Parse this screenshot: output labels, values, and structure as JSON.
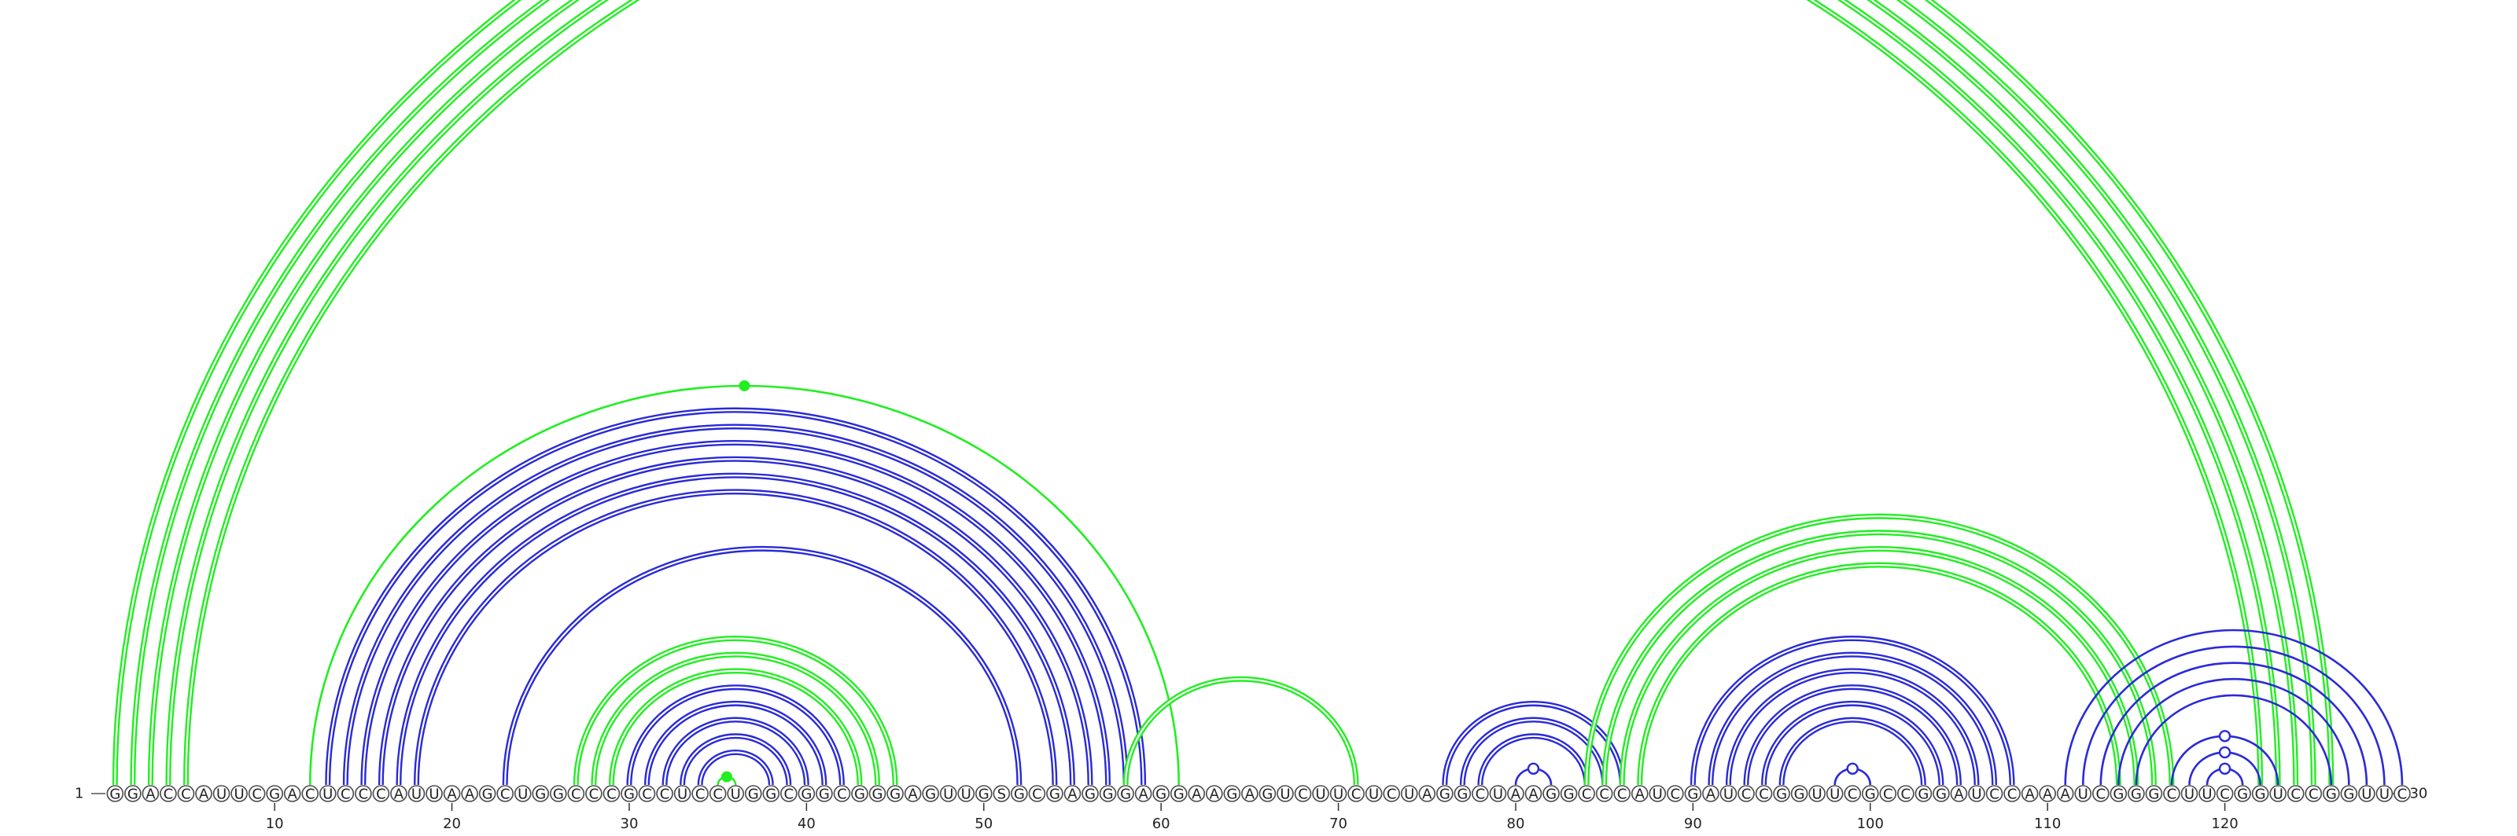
{
  "sequence": "GGACCAUUCGACUCCCAUUAAGCUGGCCCGCCUCCUGGCGGCGGGAGUUGSGCGAGGGAGGAAGAGUCUUCUCUAGGCUAAGGCCCAUCGAUCCGGUUCGCCGGAUCCAAAUCGGGCUUCGGUCCGGUUC",
  "start_label": "1",
  "end_label": "130",
  "position_ticks": [
    10,
    20,
    30,
    40,
    50,
    60,
    70,
    80,
    90,
    100,
    110,
    120
  ],
  "colors": {
    "green": "#22ee22",
    "blue": "#2a2ad8"
  },
  "helices": [
    {
      "i": 1,
      "j": 126,
      "len": 5,
      "color": "green",
      "double": true
    },
    {
      "i": 12,
      "j": 61,
      "len": 1,
      "color": "green",
      "double": false,
      "dot": "filled"
    },
    {
      "i": 13,
      "j": 59,
      "len": 6,
      "color": "blue",
      "double": true
    },
    {
      "i": 23,
      "j": 52,
      "len": 1,
      "color": "blue",
      "double": true
    },
    {
      "i": 27,
      "j": 45,
      "len": 3,
      "color": "green",
      "double": true
    },
    {
      "i": 30,
      "j": 42,
      "len": 5,
      "color": "blue",
      "double": true
    },
    {
      "i": 35,
      "j": 36,
      "len": 1,
      "color": "green",
      "double": false,
      "dot": "filled"
    },
    {
      "i": 58,
      "j": 71,
      "len": 1,
      "color": "green",
      "double": true
    },
    {
      "i": 76,
      "j": 86,
      "len": 3,
      "color": "blue",
      "double": true
    },
    {
      "i": 80,
      "j": 82,
      "len": 1,
      "color": "blue",
      "double": false,
      "dot": "open"
    },
    {
      "i": 84,
      "j": 117,
      "len": 4,
      "color": "green",
      "double": true
    },
    {
      "i": 90,
      "j": 108,
      "len": 6,
      "color": "blue",
      "double": true
    },
    {
      "i": 98,
      "j": 100,
      "len": 1,
      "color": "blue",
      "double": false,
      "dot": "open"
    },
    {
      "i": 111,
      "j": 130,
      "len": 5,
      "color": "blue",
      "double": false
    },
    {
      "i": 119,
      "j": 121,
      "len": 1,
      "color": "blue",
      "double": false,
      "dot": "open"
    },
    {
      "i": 118,
      "j": 122,
      "len": 1,
      "color": "blue",
      "double": false,
      "dot": "open"
    },
    {
      "i": 117,
      "j": 123,
      "len": 1,
      "color": "blue",
      "double": false,
      "dot": "open"
    }
  ]
}
